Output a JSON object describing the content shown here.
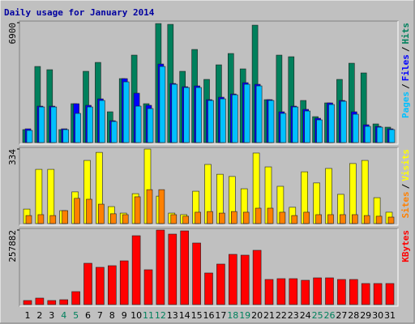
{
  "chart_data": [
    {
      "type": "bar",
      "title": "Daily usage for January 2014",
      "ylim": [
        0,
        6900
      ],
      "yticks": [
        6900
      ],
      "legend_separator": "/",
      "series": [
        {
          "name": "Hits",
          "color": "#00805c",
          "values": [
            746,
            4380,
            4194,
            746,
            2237,
            4101,
            4613,
            1771,
            3681,
            5033,
            2237,
            6850,
            6804,
            4101,
            5359,
            3635,
            4474,
            5126,
            4241,
            6757,
            2470,
            5033,
            4940,
            2423,
            1491,
            2283,
            3635,
            4567,
            4008,
            1072,
            885
          ]
        },
        {
          "name": "Files",
          "color": "#0000ff",
          "values": [
            792,
            2097,
            2097,
            792,
            2237,
            2144,
            2516,
            1258,
            3681,
            2843,
            2144,
            4520,
            3402,
            3215,
            3262,
            2470,
            2610,
            2796,
            3448,
            3355,
            2470,
            1771,
            2097,
            1911,
            1398,
            2283,
            2423,
            1771,
            1025,
            932,
            792
          ]
        },
        {
          "name": "Pages",
          "color": "#00c0ff",
          "values": [
            699,
            2050,
            2050,
            746,
            1678,
            2050,
            2423,
            1212,
            3495,
            2097,
            1957,
            4380,
            3355,
            3169,
            3169,
            2423,
            2516,
            2749,
            3355,
            3262,
            2423,
            1678,
            2050,
            1817,
            1305,
            2190,
            2377,
            1631,
            932,
            885,
            746
          ]
        }
      ]
    },
    {
      "type": "bar",
      "ylim": [
        0,
        334
      ],
      "yticks": [
        334
      ],
      "legend_separator": "/",
      "series": [
        {
          "name": "Visits",
          "color": "#ffff00",
          "values": [
            65,
            243,
            243,
            58,
            142,
            283,
            319,
            76,
            47,
            134,
            334,
            123,
            47,
            40,
            145,
            265,
            221,
            211,
            156,
            316,
            254,
            167,
            73,
            232,
            182,
            247,
            131,
            269,
            283,
            116,
            51
          ]
        },
        {
          "name": "Sites",
          "color": "#ff8000",
          "values": [
            36,
            40,
            36,
            58,
            113,
            109,
            87,
            44,
            40,
            120,
            152,
            152,
            40,
            33,
            51,
            54,
            47,
            54,
            51,
            69,
            69,
            51,
            36,
            51,
            40,
            40,
            40,
            40,
            36,
            33,
            29
          ]
        }
      ]
    },
    {
      "type": "bar",
      "ylim": [
        0,
        257882
      ],
      "yticks": [
        257882
      ],
      "categories": [
        "1",
        "2",
        "3",
        "4",
        "5",
        "6",
        "7",
        "8",
        "9",
        "10",
        "11",
        "12",
        "13",
        "14",
        "15",
        "16",
        "17",
        "18",
        "19",
        "20",
        "21",
        "22",
        "23",
        "24",
        "25",
        "26",
        "27",
        "28",
        "29",
        "30",
        "31"
      ],
      "category_colors": [
        "#000000",
        "#000000",
        "#000000",
        "#00805c",
        "#00805c",
        "#000000",
        "#000000",
        "#000000",
        "#000000",
        "#000000",
        "#00805c",
        "#00805c",
        "#000000",
        "#000000",
        "#000000",
        "#000000",
        "#000000",
        "#00805c",
        "#00805c",
        "#000000",
        "#000000",
        "#000000",
        "#000000",
        "#000000",
        "#00805c",
        "#00805c",
        "#000000",
        "#000000",
        "#000000",
        "#000000",
        "#000000"
      ],
      "series": [
        {
          "name": "KBytes",
          "color": "#ff0000",
          "values": [
            14015,
            22424,
            14015,
            16818,
            44848,
            142953,
            128938,
            134544,
            151362,
            238255,
            120529,
            257882,
            243861,
            255073,
            213028,
            109317,
            140150,
            173786,
            170983,
            187801,
            86893,
            89696,
            89696,
            84090,
            92499,
            92499,
            86893,
            86893,
            72878,
            72878,
            72878
          ]
        }
      ]
    }
  ]
}
